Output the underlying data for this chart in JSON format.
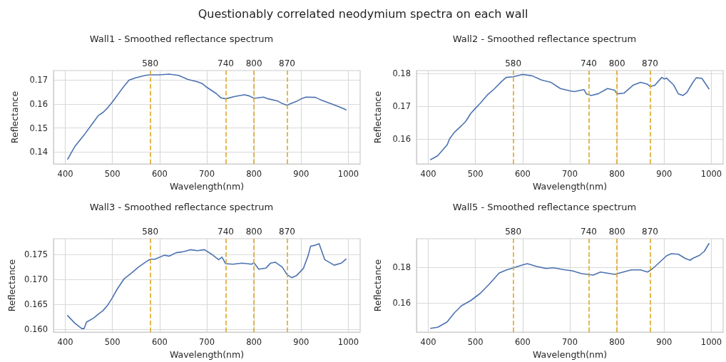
{
  "chart_data": [
    {
      "type": "line",
      "title": "Wall1 - Smoothed reflectance spectrum",
      "annotations": [
        "Questionably correlated neodymium spectra on each wall"
      ],
      "xlabel": "Wavelength(nm)",
      "ylabel": "Reflectance",
      "xlim": [
        375,
        1025
      ],
      "xticks": [
        400,
        500,
        600,
        700,
        800,
        900,
        1000
      ],
      "ylim": [
        0.135,
        0.174
      ],
      "yticks": [
        0.14,
        0.15,
        0.16,
        0.17
      ],
      "grid": true,
      "marker": "none",
      "line_style": "solid",
      "series": [
        {
          "color": "#4c72b0",
          "x": [
            405,
            420,
            440,
            460,
            470,
            480,
            490,
            500,
            520,
            535,
            550,
            570,
            580,
            600,
            620,
            640,
            660,
            680,
            690,
            700,
            720,
            730,
            740,
            760,
            780,
            790,
            800,
            820,
            830,
            850,
            860,
            870,
            880,
            890,
            900,
            910,
            930,
            940,
            960,
            980,
            995
          ],
          "values": [
            0.137,
            0.1422,
            0.1471,
            0.1525,
            0.1552,
            0.1565,
            0.1585,
            0.1609,
            0.1663,
            0.17,
            0.171,
            0.172,
            0.1722,
            0.1722,
            0.1725,
            0.172,
            0.1703,
            0.1693,
            0.1686,
            0.167,
            0.1644,
            0.1626,
            0.1622,
            0.1632,
            0.1639,
            0.1634,
            0.1624,
            0.1629,
            0.1622,
            0.1613,
            0.1602,
            0.1595,
            0.1604,
            0.1611,
            0.1622,
            0.1629,
            0.1628,
            0.1619,
            0.1604,
            0.1589,
            0.1576
          ]
        }
      ],
      "ref_lines": [
        {
          "axis": "x",
          "value": 580,
          "label": "580",
          "color": "#dda824",
          "line_style": "dashed"
        },
        {
          "axis": "x",
          "value": 740,
          "label": "740",
          "color": "#dda824",
          "line_style": "dashed"
        },
        {
          "axis": "x",
          "value": 800,
          "label": "800",
          "color": "#dda824",
          "line_style": "dashed"
        },
        {
          "axis": "x",
          "value": 870,
          "label": "870",
          "color": "#dda824",
          "line_style": "dashed"
        }
      ]
    },
    {
      "type": "line",
      "title": "Wall2 - Smoothed reflectance spectrum",
      "xlabel": "Wavelength(nm)",
      "ylabel": "Reflectance",
      "xlim": [
        375,
        1025
      ],
      "xticks": [
        400,
        500,
        600,
        700,
        800,
        900,
        1000
      ],
      "ylim": [
        0.1524,
        0.1809
      ],
      "yticks": [
        0.16,
        0.17,
        0.18
      ],
      "grid": true,
      "marker": "none",
      "line_style": "solid",
      "series": [
        {
          "color": "#4c72b0",
          "x": [
            405,
            420,
            440,
            445,
            455,
            470,
            480,
            490,
            500,
            510,
            525,
            540,
            555,
            565,
            580,
            600,
            620,
            640,
            660,
            680,
            700,
            710,
            730,
            735,
            745,
            760,
            780,
            795,
            800,
            815,
            835,
            850,
            865,
            870,
            880,
            895,
            900,
            905,
            920,
            930,
            940,
            948,
            960,
            968,
            980,
            995
          ],
          "values": [
            0.1537,
            0.1549,
            0.1582,
            0.16,
            0.162,
            0.164,
            0.1655,
            0.1678,
            0.1694,
            0.1709,
            0.1734,
            0.1753,
            0.1775,
            0.1788,
            0.179,
            0.1797,
            0.1793,
            0.178,
            0.1773,
            0.1754,
            0.1747,
            0.1745,
            0.1751,
            0.1738,
            0.1733,
            0.1738,
            0.1754,
            0.1749,
            0.1738,
            0.174,
            0.1765,
            0.1773,
            0.1767,
            0.176,
            0.1764,
            0.1788,
            0.1783,
            0.1786,
            0.1765,
            0.1738,
            0.1733,
            0.1742,
            0.1771,
            0.1787,
            0.1785,
            0.1753
          ]
        }
      ],
      "ref_lines": [
        {
          "axis": "x",
          "value": 580,
          "label": "580",
          "color": "#dda824",
          "line_style": "dashed"
        },
        {
          "axis": "x",
          "value": 740,
          "label": "740",
          "color": "#dda824",
          "line_style": "dashed"
        },
        {
          "axis": "x",
          "value": 800,
          "label": "800",
          "color": "#dda824",
          "line_style": "dashed"
        },
        {
          "axis": "x",
          "value": 870,
          "label": "870",
          "color": "#dda824",
          "line_style": "dashed"
        }
      ]
    },
    {
      "type": "line",
      "title": "Wall3 - Smoothed reflectance spectrum",
      "xlabel": "Wavelength(nm)",
      "ylabel": "Reflectance",
      "xlim": [
        375,
        1025
      ],
      "xticks": [
        400,
        500,
        600,
        700,
        800,
        900,
        1000
      ],
      "ylim": [
        0.1595,
        0.1782
      ],
      "yticks": [
        {
          "value": 0.16,
          "label": "0.160"
        },
        {
          "value": 0.165,
          "label": "0.165"
        },
        {
          "value": 0.17,
          "label": "0.170"
        },
        {
          "value": 0.175,
          "label": "0.175"
        }
      ],
      "grid": true,
      "marker": "none",
      "line_style": "solid",
      "series": [
        {
          "color": "#4c72b0",
          "x": [
            405,
            420,
            435,
            440,
            445,
            460,
            470,
            480,
            490,
            500,
            510,
            525,
            540,
            555,
            570,
            580,
            590,
            610,
            620,
            635,
            650,
            665,
            680,
            695,
            710,
            725,
            732,
            740,
            755,
            775,
            795,
            800,
            810,
            825,
            835,
            845,
            860,
            870,
            880,
            890,
            905,
            915,
            920,
            930,
            938,
            950,
            970,
            985,
            995
          ],
          "values": [
            0.1628,
            0.1613,
            0.1602,
            0.1602,
            0.1615,
            0.1623,
            0.1631,
            0.1638,
            0.1649,
            0.1664,
            0.1681,
            0.1702,
            0.1713,
            0.1725,
            0.1735,
            0.1741,
            0.1741,
            0.1749,
            0.1747,
            0.1754,
            0.1756,
            0.176,
            0.1758,
            0.176,
            0.1751,
            0.174,
            0.1745,
            0.1732,
            0.1731,
            0.1733,
            0.1731,
            0.1734,
            0.1721,
            0.1723,
            0.1733,
            0.1735,
            0.1725,
            0.171,
            0.1704,
            0.1708,
            0.1723,
            0.1749,
            0.1767,
            0.1769,
            0.1772,
            0.174,
            0.1729,
            0.1733,
            0.1741
          ]
        }
      ],
      "ref_lines": [
        {
          "axis": "x",
          "value": 580,
          "label": "580",
          "color": "#dda824",
          "line_style": "dashed"
        },
        {
          "axis": "x",
          "value": 740,
          "label": "740",
          "color": "#dda824",
          "line_style": "dashed"
        },
        {
          "axis": "x",
          "value": 800,
          "label": "800",
          "color": "#dda824",
          "line_style": "dashed"
        },
        {
          "axis": "x",
          "value": 870,
          "label": "870",
          "color": "#dda824",
          "line_style": "dashed"
        }
      ]
    },
    {
      "type": "line",
      "title": "Wall5 - Smoothed reflectance spectrum",
      "xlabel": "Wavelength(nm)",
      "ylabel": "Reflectance",
      "xlim": [
        375,
        1025
      ],
      "xticks": [
        400,
        500,
        600,
        700,
        800,
        900,
        1000
      ],
      "ylim": [
        0.1436,
        0.196
      ],
      "yticks": [
        0.16,
        0.18
      ],
      "grid": true,
      "marker": "none",
      "line_style": "solid",
      "series": [
        {
          "color": "#4c72b0",
          "x": [
            405,
            420,
            440,
            455,
            470,
            490,
            510,
            530,
            550,
            565,
            580,
            600,
            610,
            630,
            650,
            665,
            690,
            705,
            725,
            740,
            750,
            765,
            795,
            805,
            830,
            850,
            865,
            875,
            890,
            905,
            915,
            930,
            945,
            955,
            960,
            975,
            985,
            995
          ],
          "values": [
            0.1457,
            0.1463,
            0.1493,
            0.1543,
            0.1583,
            0.1613,
            0.1653,
            0.1707,
            0.1767,
            0.1784,
            0.1796,
            0.1813,
            0.182,
            0.1804,
            0.1793,
            0.1797,
            0.1785,
            0.178,
            0.1764,
            0.1759,
            0.1756,
            0.1773,
            0.176,
            0.1767,
            0.1785,
            0.1785,
            0.1773,
            0.1791,
            0.1827,
            0.1864,
            0.1876,
            0.1873,
            0.1849,
            0.1839,
            0.1849,
            0.1867,
            0.1889,
            0.1933
          ]
        }
      ],
      "ref_lines": [
        {
          "axis": "x",
          "value": 580,
          "label": "580",
          "color": "#dda824",
          "line_style": "dashed"
        },
        {
          "axis": "x",
          "value": 740,
          "label": "740",
          "color": "#dda824",
          "line_style": "dashed"
        },
        {
          "axis": "x",
          "value": 800,
          "label": "800",
          "color": "#dda824",
          "line_style": "dashed"
        },
        {
          "axis": "x",
          "value": 870,
          "label": "870",
          "color": "#dda824",
          "line_style": "dashed"
        }
      ]
    }
  ]
}
